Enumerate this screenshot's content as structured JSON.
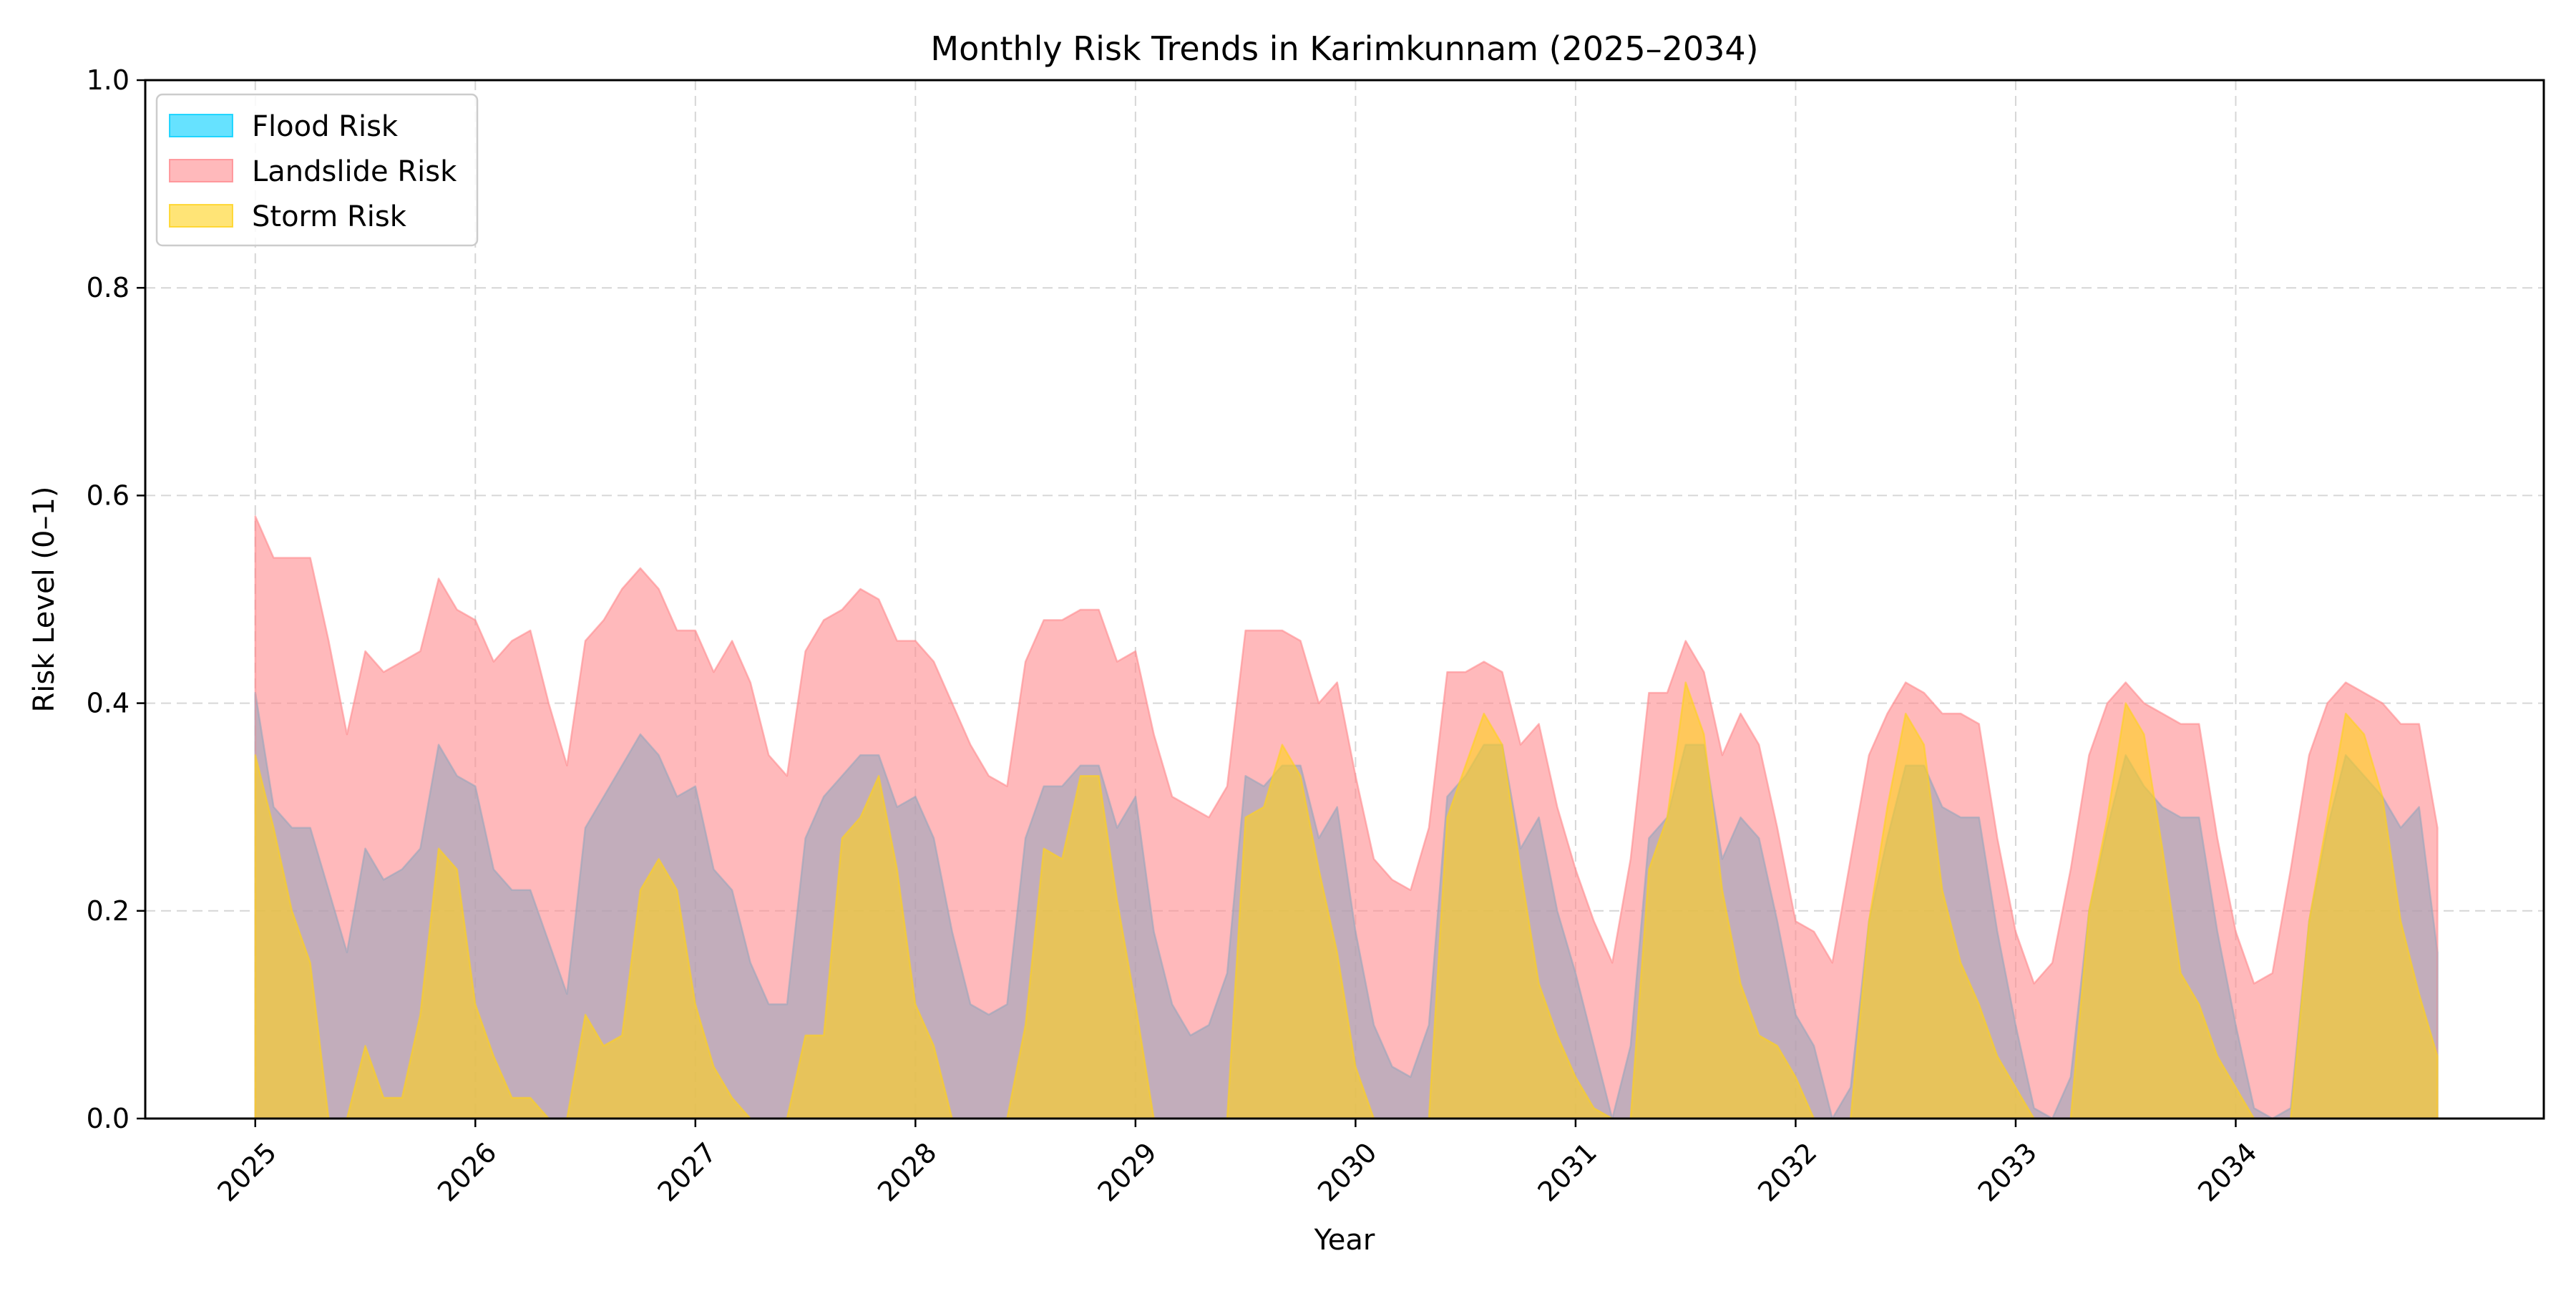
{
  "chart_data": {
    "type": "area",
    "title": "Monthly Risk Trends in Karimkunnam (2025–2034)",
    "xlabel": "Year",
    "ylabel": "Risk Level (0–1)",
    "xlim": [
      2024.5,
      2035.4
    ],
    "ylim": [
      0,
      1.0
    ],
    "x_ticks": [
      2025,
      2026,
      2027,
      2028,
      2029,
      2030,
      2031,
      2032,
      2033,
      2034
    ],
    "x_tick_labels": [
      "2025",
      "2026",
      "2027",
      "2028",
      "2029",
      "2030",
      "2031",
      "2032",
      "2033",
      "2034"
    ],
    "y_ticks": [
      0.0,
      0.2,
      0.4,
      0.6,
      0.8,
      1.0
    ],
    "y_tick_labels": [
      "0.0",
      "0.2",
      "0.4",
      "0.6",
      "0.8",
      "1.0"
    ],
    "x_tick_rotation": 45,
    "grid": true,
    "legend_position": "top-left",
    "x_start_year": 2025,
    "points_per_year": 12,
    "series": [
      {
        "name": "Flood Risk",
        "color": "#00cfff",
        "values": [
          0.41,
          0.3,
          0.28,
          0.28,
          0.22,
          0.16,
          0.26,
          0.23,
          0.24,
          0.26,
          0.36,
          0.33,
          0.32,
          0.24,
          0.22,
          0.22,
          0.17,
          0.12,
          0.28,
          0.31,
          0.34,
          0.37,
          0.35,
          0.31,
          0.32,
          0.24,
          0.22,
          0.15,
          0.11,
          0.11,
          0.27,
          0.31,
          0.33,
          0.35,
          0.35,
          0.3,
          0.31,
          0.27,
          0.18,
          0.11,
          0.1,
          0.11,
          0.27,
          0.32,
          0.32,
          0.34,
          0.34,
          0.28,
          0.31,
          0.18,
          0.11,
          0.08,
          0.09,
          0.14,
          0.33,
          0.32,
          0.34,
          0.34,
          0.27,
          0.3,
          0.18,
          0.09,
          0.05,
          0.04,
          0.09,
          0.31,
          0.33,
          0.36,
          0.36,
          0.26,
          0.29,
          0.2,
          0.14,
          0.07,
          0.0,
          0.07,
          0.27,
          0.29,
          0.36,
          0.36,
          0.25,
          0.29,
          0.27,
          0.19,
          0.1,
          0.07,
          0.0,
          0.03,
          0.19,
          0.27,
          0.34,
          0.34,
          0.3,
          0.29,
          0.29,
          0.18,
          0.09,
          0.01,
          0.0,
          0.04,
          0.2,
          0.28,
          0.35,
          0.32,
          0.3,
          0.29,
          0.29,
          0.18,
          0.09,
          0.01,
          0.0,
          0.01,
          0.19,
          0.28,
          0.35,
          0.33,
          0.31,
          0.28,
          0.3,
          0.16
        ]
      },
      {
        "name": "Landslide Risk",
        "color": "#ff8a8e",
        "values": [
          0.58,
          0.54,
          0.54,
          0.54,
          0.46,
          0.37,
          0.45,
          0.43,
          0.44,
          0.45,
          0.52,
          0.49,
          0.48,
          0.44,
          0.46,
          0.47,
          0.4,
          0.34,
          0.46,
          0.48,
          0.51,
          0.53,
          0.51,
          0.47,
          0.47,
          0.43,
          0.46,
          0.42,
          0.35,
          0.33,
          0.45,
          0.48,
          0.49,
          0.51,
          0.5,
          0.46,
          0.46,
          0.44,
          0.4,
          0.36,
          0.33,
          0.32,
          0.44,
          0.48,
          0.48,
          0.49,
          0.49,
          0.44,
          0.45,
          0.37,
          0.31,
          0.3,
          0.29,
          0.32,
          0.47,
          0.47,
          0.47,
          0.46,
          0.4,
          0.42,
          0.33,
          0.25,
          0.23,
          0.22,
          0.28,
          0.43,
          0.43,
          0.44,
          0.43,
          0.36,
          0.38,
          0.3,
          0.24,
          0.19,
          0.15,
          0.25,
          0.41,
          0.41,
          0.46,
          0.43,
          0.35,
          0.39,
          0.36,
          0.28,
          0.19,
          0.18,
          0.15,
          0.25,
          0.35,
          0.39,
          0.42,
          0.41,
          0.39,
          0.39,
          0.38,
          0.27,
          0.18,
          0.13,
          0.15,
          0.24,
          0.35,
          0.4,
          0.42,
          0.4,
          0.39,
          0.38,
          0.38,
          0.27,
          0.18,
          0.13,
          0.14,
          0.24,
          0.35,
          0.4,
          0.42,
          0.41,
          0.4,
          0.38,
          0.38,
          0.28
        ]
      },
      {
        "name": "Storm Risk",
        "color": "#ffd21a",
        "values": [
          0.35,
          0.28,
          0.2,
          0.15,
          0.0,
          0.0,
          0.07,
          0.02,
          0.02,
          0.1,
          0.26,
          0.24,
          0.11,
          0.06,
          0.02,
          0.02,
          0.0,
          0.0,
          0.1,
          0.07,
          0.08,
          0.22,
          0.25,
          0.22,
          0.11,
          0.05,
          0.02,
          0.0,
          0.0,
          0.0,
          0.08,
          0.08,
          0.27,
          0.29,
          0.33,
          0.24,
          0.11,
          0.07,
          0.0,
          0.0,
          0.0,
          0.0,
          0.09,
          0.26,
          0.25,
          0.33,
          0.33,
          0.21,
          0.11,
          0.0,
          0.0,
          0.0,
          0.0,
          0.0,
          0.29,
          0.3,
          0.36,
          0.33,
          0.24,
          0.16,
          0.05,
          0.0,
          0.0,
          0.0,
          0.0,
          0.29,
          0.34,
          0.39,
          0.36,
          0.24,
          0.13,
          0.08,
          0.04,
          0.01,
          0.0,
          0.0,
          0.24,
          0.29,
          0.42,
          0.37,
          0.22,
          0.13,
          0.08,
          0.07,
          0.04,
          0.0,
          0.0,
          0.0,
          0.19,
          0.3,
          0.39,
          0.36,
          0.22,
          0.15,
          0.11,
          0.06,
          0.03,
          0.0,
          0.0,
          0.0,
          0.2,
          0.29,
          0.4,
          0.37,
          0.26,
          0.14,
          0.11,
          0.06,
          0.03,
          0.0,
          0.0,
          0.0,
          0.19,
          0.29,
          0.39,
          0.37,
          0.31,
          0.19,
          0.12,
          0.06
        ]
      }
    ]
  }
}
